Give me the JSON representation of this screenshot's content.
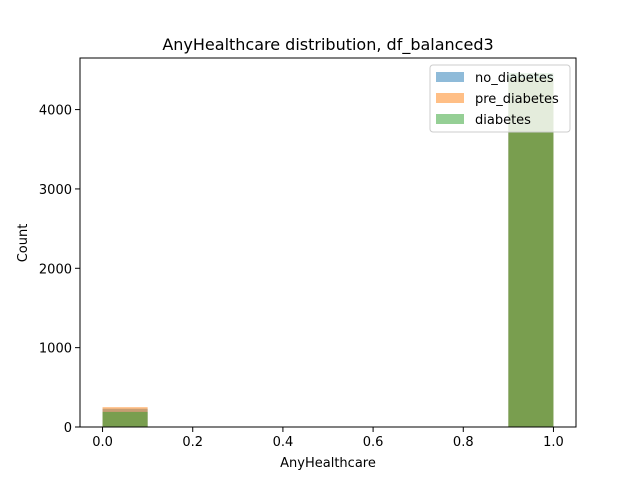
{
  "chart_data": {
    "type": "bar",
    "title": "AnyHealthcare distribution, df_balanced3",
    "xlabel": "AnyHealthcare",
    "ylabel": "Count",
    "xlim": [
      -0.05,
      1.05
    ],
    "ylim": [
      0,
      4650
    ],
    "xticks": [
      "0.0",
      "0.2",
      "0.4",
      "0.6",
      "0.8",
      "1.0"
    ],
    "yticks": [
      "0",
      "1000",
      "2000",
      "3000",
      "4000"
    ],
    "bins": [
      [
        0.0,
        0.1
      ],
      [
        0.9,
        1.0
      ]
    ],
    "series": [
      {
        "name": "no_diabetes",
        "color": "#1f77b4",
        "values": [
          230,
          4420
        ]
      },
      {
        "name": "pre_diabetes",
        "color": "#ff7f0e",
        "values": [
          250,
          4400
        ]
      },
      {
        "name": "diabetes",
        "color": "#2ca02c",
        "values": [
          190,
          4460
        ]
      }
    ],
    "opacity": 0.5,
    "legend_position": "top-right",
    "grid": false
  }
}
